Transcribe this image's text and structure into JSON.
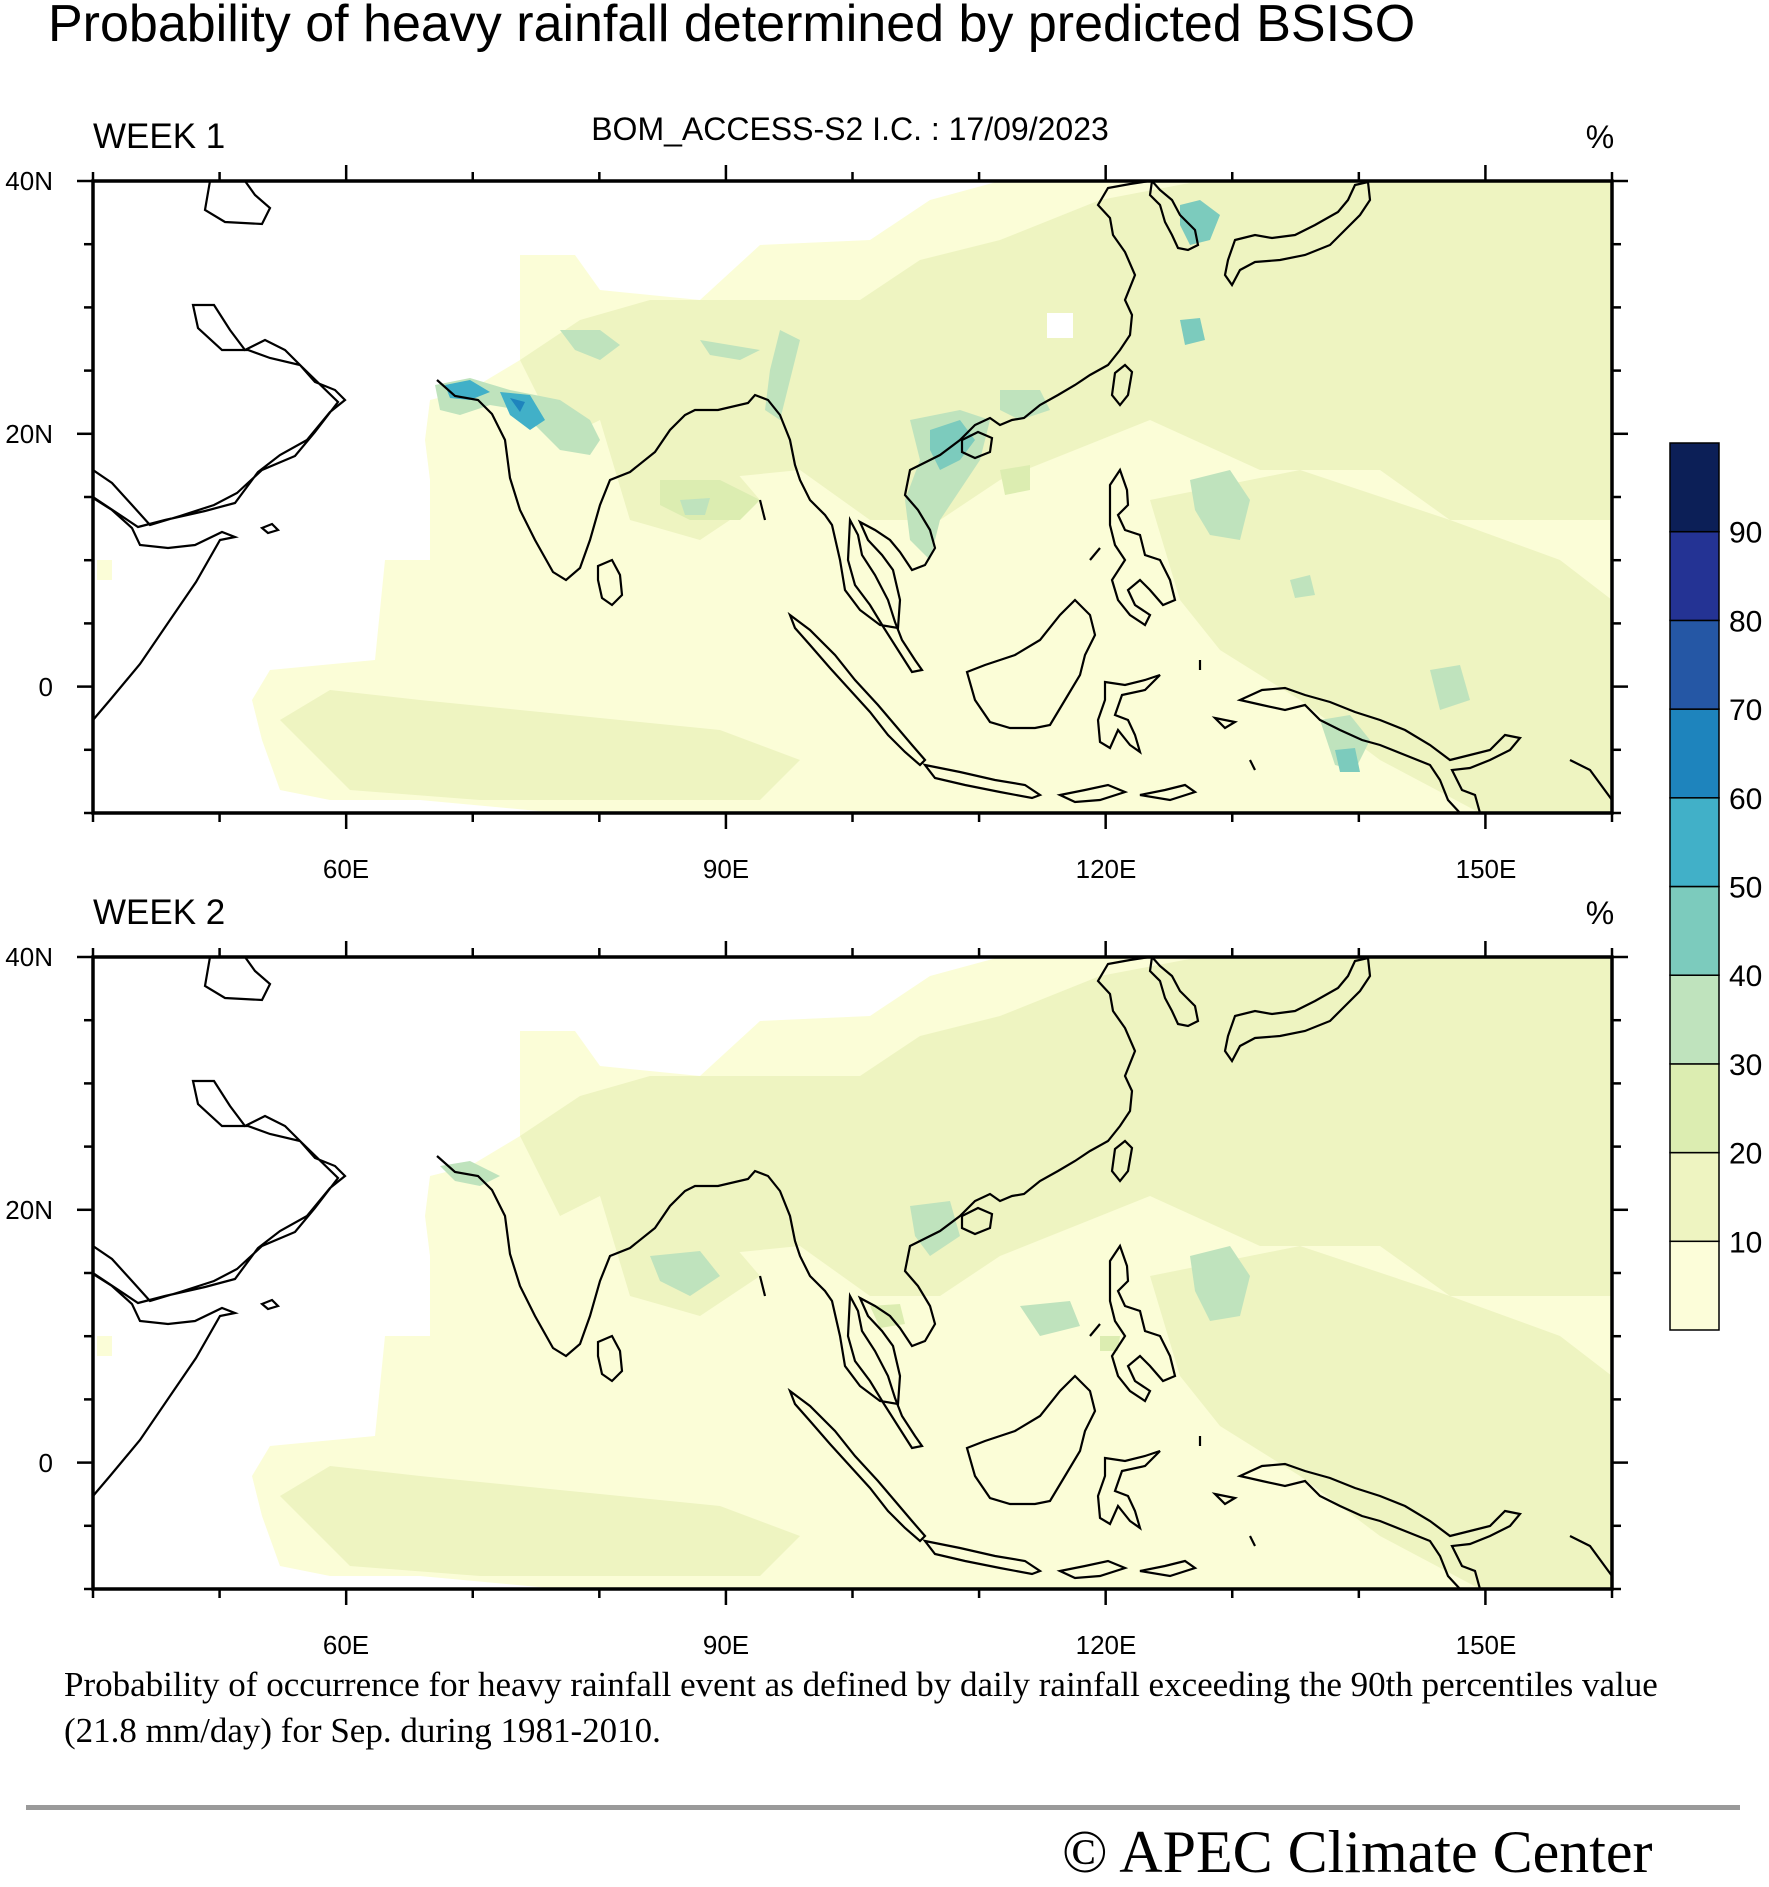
{
  "title": "Probability of heavy rainfall determined by predicted BSISO",
  "model_info": "BOM_ACCESS-S2  I.C. : 17/09/2023",
  "panels": [
    {
      "label": "WEEK 1",
      "unit": "%"
    },
    {
      "label": "WEEK 2",
      "unit": "%"
    }
  ],
  "lon_ticks": [
    "60E",
    "90E",
    "120E",
    "150E"
  ],
  "lat_ticks": [
    "40N",
    "20N",
    "0"
  ],
  "colorbar": {
    "levels": [
      "10",
      "20",
      "30",
      "40",
      "50",
      "60",
      "70",
      "80",
      "90"
    ],
    "colors": [
      "#fcfdd9",
      "#eef4c1",
      "#dcedb1",
      "#bfe3bd",
      "#7ccbbd",
      "#41b0c8",
      "#1e84bd",
      "#2557a5",
      "#243394",
      "#0c1f57"
    ]
  },
  "caption": "Probability of occurrence for heavy rainfall event as defined by daily rainfall exceeding the 90th percentiles value (21.8 mm/day) for Sep. during 1981-2010.",
  "copyright": "©  APEC Climate Center"
}
